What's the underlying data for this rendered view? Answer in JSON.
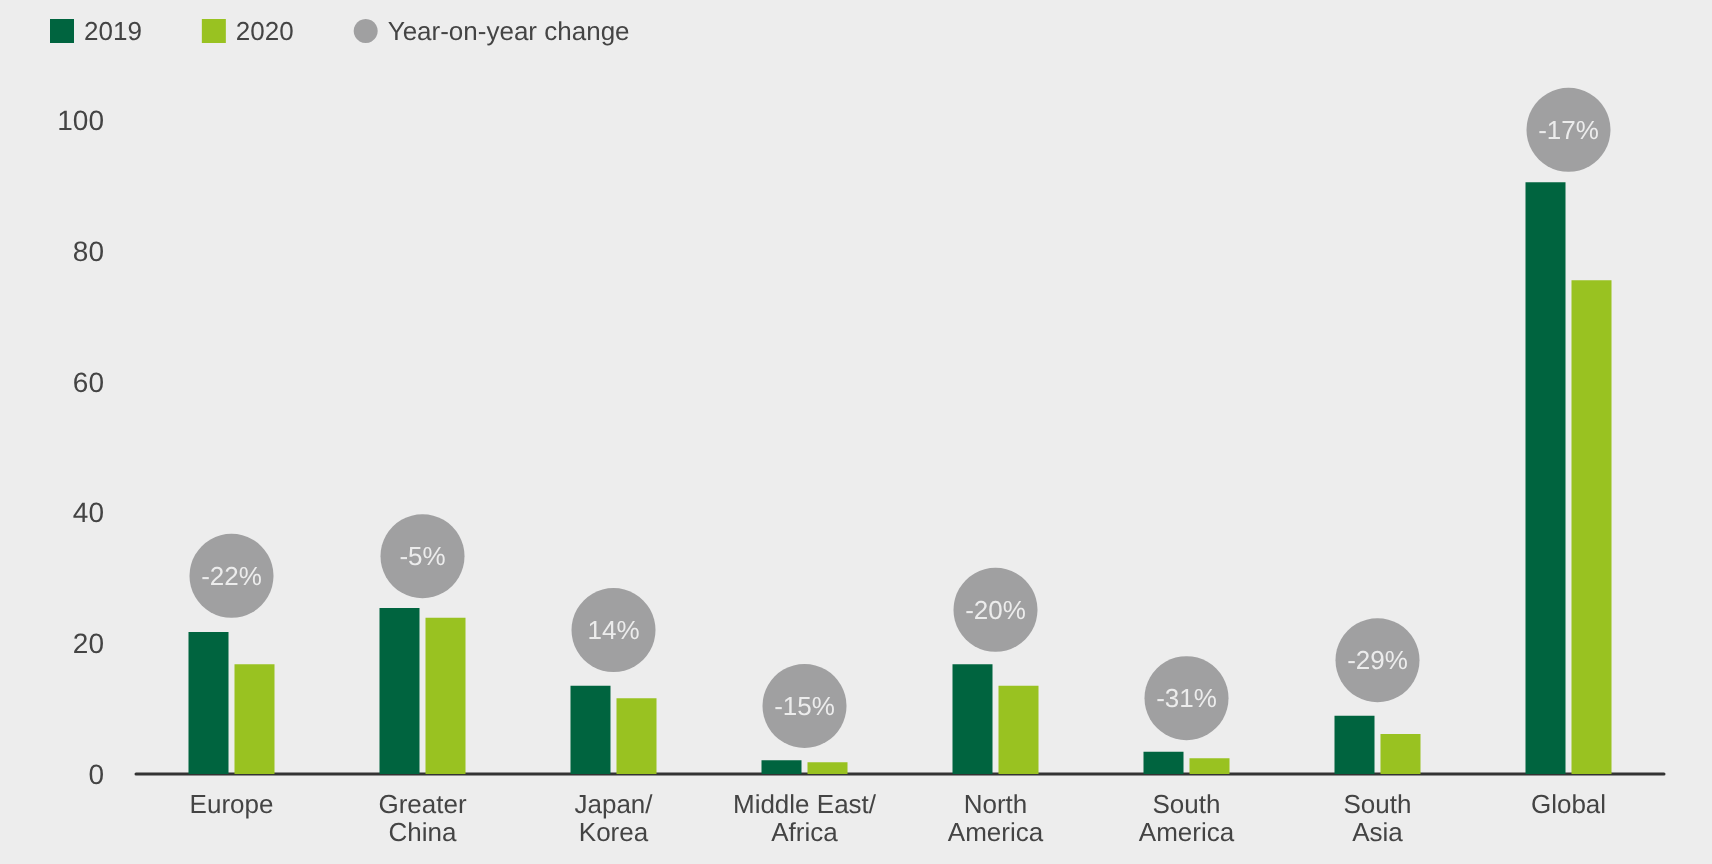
{
  "chart_data": {
    "type": "bar",
    "categories": [
      "Europe",
      "Greater\nChina",
      "Japan/\nKorea",
      "Middle East/\nAfrica",
      "North\nAmerica",
      "South\nAmerica",
      "South\nAsia",
      "Global"
    ],
    "series": [
      {
        "name": "2019",
        "color": "#00643f",
        "values": [
          21.7,
          25.4,
          13.5,
          2.1,
          16.8,
          3.4,
          8.9,
          90.5
        ]
      },
      {
        "name": "2020",
        "color": "#99c221",
        "values": [
          16.8,
          23.9,
          11.6,
          1.8,
          13.5,
          2.4,
          6.1,
          75.5
        ]
      },
      {
        "name": "Year-on-year change",
        "type": "scatter",
        "color": "#8c8c8d",
        "values": [
          null,
          null,
          null,
          null,
          null,
          null,
          null,
          null
        ]
      }
    ],
    "annotations": [
      {
        "text": "-22%",
        "x": "Europe",
        "y": 30.3
      },
      {
        "text": "-5%",
        "x": "Greater\nChina",
        "y": 33.3
      },
      {
        "text": "14%",
        "x": "Japan/\nKorea",
        "y": 22
      },
      {
        "text": "-15%",
        "x": "Middle East/\nAfrica",
        "y": 10.4
      },
      {
        "text": "-20%",
        "x": "North\nAmerica",
        "y": 25.1
      },
      {
        "text": "-31%",
        "x": "South\nAmerica",
        "y": 11.6
      },
      {
        "text": "-29%",
        "x": "South\nAsia",
        "y": 17.4
      },
      {
        "text": "-17%",
        "x": "Global",
        "y": 98.5
      }
    ],
    "ylim": [
      0,
      100
    ],
    "yticks": [
      0,
      20,
      40,
      60,
      80,
      100
    ],
    "grid": false,
    "legend": "top left",
    "marker": "circle"
  }
}
